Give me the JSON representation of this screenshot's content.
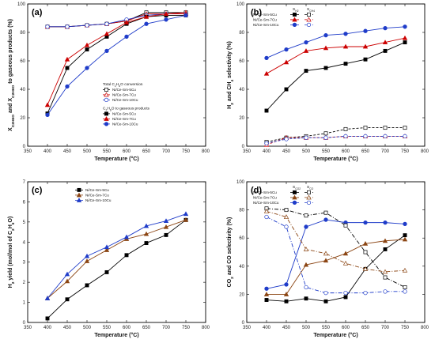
{
  "chart_data": [
    {
      "id": "a",
      "type": "line",
      "panel_label": "(a)",
      "xlabel": "Temperature (°C)",
      "ylabel_parts": [
        "X",
        "C2H6O",
        " and X",
        "C2H6O",
        " to gaseous products (%)"
      ],
      "xlim": [
        350,
        800
      ],
      "ylim": [
        0,
        100
      ],
      "xticks": [
        350,
        400,
        450,
        500,
        550,
        600,
        650,
        700,
        750,
        800
      ],
      "yticks": [
        0,
        20,
        40,
        60,
        80,
        100
      ],
      "x": [
        400,
        450,
        500,
        550,
        600,
        650,
        700,
        750
      ],
      "legend_groups": [
        {
          "title": "Total C2H6O conversion",
          "series_idx": [
            0,
            1,
            2
          ]
        },
        {
          "title": "C2H6O to gaseous products",
          "series_idx": [
            3,
            4,
            5
          ]
        }
      ],
      "series": [
        {
          "name": "Ni/Ce-Sm-5Cu",
          "color": "#000000",
          "marker": "square",
          "filled": false,
          "dash": "",
          "values": [
            84,
            84,
            85,
            86,
            88,
            94,
            94,
            94
          ]
        },
        {
          "name": "Ni/Ce-Sm-7Cu",
          "color": "#cc0000",
          "marker": "triangle",
          "filled": false,
          "dash": "",
          "values": [
            84,
            84,
            85,
            86,
            88,
            93,
            93,
            94
          ]
        },
        {
          "name": "Ni/Ce-Sm-10Cu",
          "color": "#1f3cc9",
          "marker": "circle",
          "filled": false,
          "dash": "",
          "values": [
            84,
            84,
            85,
            86,
            89,
            92,
            93,
            93
          ]
        },
        {
          "name": "Ni/Ce-Sm-5Cu",
          "color": "#000000",
          "marker": "square",
          "filled": true,
          "dash": "",
          "values": [
            23,
            55,
            68,
            77,
            86,
            91,
            92,
            92
          ]
        },
        {
          "name": "Ni/Ce-Sm-7Cu",
          "color": "#cc0000",
          "marker": "triangle",
          "filled": true,
          "dash": "",
          "values": [
            29,
            61,
            71,
            79,
            87,
            91,
            93,
            93
          ]
        },
        {
          "name": "Ni/Ce-Sm-10Cu",
          "color": "#1f3cc9",
          "marker": "circle",
          "filled": true,
          "dash": "",
          "values": [
            22,
            42,
            55,
            67,
            77,
            86,
            89,
            92
          ]
        }
      ]
    },
    {
      "id": "b",
      "type": "line",
      "panel_label": "(b)",
      "xlabel": "Temperature (°C)",
      "ylabel_parts": [
        "H",
        "2",
        " and CH",
        "4",
        " selectivity (%)"
      ],
      "xlim": [
        350,
        800
      ],
      "ylim": [
        0,
        100
      ],
      "xticks": [
        350,
        400,
        450,
        500,
        550,
        600,
        650,
        700,
        750,
        800
      ],
      "yticks": [
        0,
        20,
        40,
        60,
        80,
        100
      ],
      "x": [
        400,
        450,
        500,
        550,
        600,
        650,
        700,
        750
      ],
      "legend_cols": [
        "S",
        "H2",
        "S",
        "CH4"
      ],
      "legend_rows": [
        {
          "label": "Ni/Ce-Sm-5Cu",
          "h2": 0,
          "ch4": 3
        },
        {
          "label": "Ni/Ce-Sm-7Cu",
          "h2": 1,
          "ch4": 4
        },
        {
          "label": "Ni/Ce-Sm-10Cu",
          "h2": 2,
          "ch4": 5
        }
      ],
      "series": [
        {
          "name": "Ni/Ce-Sm-5Cu",
          "color": "#000000",
          "marker": "square",
          "filled": true,
          "dash": "",
          "values": [
            25,
            40,
            53,
            55,
            58,
            61,
            67,
            73
          ]
        },
        {
          "name": "Ni/Ce-Sm-7Cu",
          "color": "#cc0000",
          "marker": "triangle",
          "filled": true,
          "dash": "",
          "values": [
            51,
            59,
            67,
            69,
            70,
            70,
            73,
            76
          ]
        },
        {
          "name": "Ni/Ce-Sm-10Cu",
          "color": "#1f3cc9",
          "marker": "circle",
          "filled": true,
          "dash": "",
          "values": [
            62,
            68,
            73,
            78,
            79,
            81,
            83,
            84
          ]
        },
        {
          "name": "Ni/Ce-Sm-5Cu",
          "color": "#000000",
          "marker": "square",
          "filled": false,
          "dash": "3,2",
          "values": [
            3,
            6,
            7,
            9,
            12,
            13,
            13,
            13
          ]
        },
        {
          "name": "Ni/Ce-Sm-7Cu",
          "color": "#cc0000",
          "marker": "triangle",
          "filled": false,
          "dash": "3,2",
          "values": [
            1,
            6,
            6,
            6,
            7,
            7,
            7,
            7
          ]
        },
        {
          "name": "Ni/Ce-Sm-10Cu",
          "color": "#1f3cc9",
          "marker": "circle",
          "filled": false,
          "dash": "3,2",
          "values": [
            2,
            5,
            6,
            6,
            7,
            7,
            7,
            7
          ]
        }
      ]
    },
    {
      "id": "c",
      "type": "line",
      "panel_label": "(c)",
      "xlabel": "Temperature (°C)",
      "ylabel_parts": [
        "H",
        "2",
        " yield (mol/mol of C",
        "2",
        "H",
        "6",
        "O)"
      ],
      "xlim": [
        350,
        800
      ],
      "ylim": [
        0,
        7
      ],
      "xticks": [
        350,
        400,
        450,
        500,
        550,
        600,
        650,
        700,
        750,
        800
      ],
      "yticks": [
        0,
        1,
        2,
        3,
        4,
        5,
        6,
        7
      ],
      "x": [
        400,
        450,
        500,
        550,
        600,
        650,
        700,
        750
      ],
      "legend_rows": [
        {
          "label": "Ni/Ce-Sm-5Cu",
          "idx": 0
        },
        {
          "label": "Ni/Ce-Sm-7Cu",
          "idx": 1
        },
        {
          "label": "Ni/Ce-Sm-10Cu",
          "idx": 2
        }
      ],
      "series": [
        {
          "name": "Ni/Ce-Sm-5Cu",
          "color": "#000000",
          "marker": "square",
          "filled": true,
          "dash": "",
          "values": [
            0.2,
            1.15,
            1.85,
            2.5,
            3.35,
            3.95,
            4.35,
            5.1
          ]
        },
        {
          "name": "Ni/Ce-Sm-7Cu",
          "color": "#8b4513",
          "marker": "triangle",
          "filled": true,
          "dash": "",
          "values": [
            1.2,
            2.05,
            3.05,
            3.6,
            4.15,
            4.4,
            4.75,
            5.1
          ]
        },
        {
          "name": "Ni/Ce-Sm-10Cu",
          "color": "#1f3cc9",
          "marker": "triangle",
          "filled": true,
          "dash": "",
          "values": [
            1.2,
            2.4,
            3.3,
            3.75,
            4.25,
            4.8,
            5.05,
            5.4
          ]
        }
      ]
    },
    {
      "id": "d",
      "type": "line",
      "panel_label": "(d)",
      "xlabel": "Temperature (°C)",
      "ylabel_parts": [
        "CO",
        "2",
        " and CO selectivity (%)"
      ],
      "xlim": [
        350,
        800
      ],
      "ylim": [
        0,
        100
      ],
      "xticks": [
        350,
        400,
        450,
        500,
        550,
        600,
        650,
        700,
        750,
        800
      ],
      "yticks": [
        0,
        20,
        40,
        60,
        80,
        100
      ],
      "x": [
        400,
        450,
        500,
        550,
        600,
        650,
        700,
        750
      ],
      "legend_cols": [
        "S",
        "CO2",
        "S",
        "CO"
      ],
      "legend_rows": [
        {
          "label": "Ni/Ce-Sm-5Cu",
          "co2": 0,
          "co": 3
        },
        {
          "label": "Ni/Ce-Sm-7Cu",
          "co2": 1,
          "co": 4
        },
        {
          "label": "Ni/Ce-Sm-10Cu",
          "co2": 2,
          "co": 5
        }
      ],
      "series": [
        {
          "name": "Ni/Ce-Sm-5Cu",
          "color": "#000000",
          "marker": "square",
          "filled": true,
          "dash": "",
          "values": [
            16,
            15,
            17,
            15,
            18,
            38,
            52,
            62
          ]
        },
        {
          "name": "Ni/Ce-Sm-7Cu",
          "color": "#8b4513",
          "marker": "triangle",
          "filled": true,
          "dash": "",
          "values": [
            20,
            20,
            41,
            44,
            49,
            56,
            58,
            59
          ]
        },
        {
          "name": "Ni/Ce-Sm-10Cu",
          "color": "#1f3cc9",
          "marker": "circle",
          "filled": true,
          "dash": "",
          "values": [
            24,
            27,
            68,
            73,
            71,
            71,
            71,
            70
          ]
        },
        {
          "name": "Ni/Ce-Sm-5Cu",
          "color": "#000000",
          "marker": "square",
          "filled": false,
          "dash": "5,2,1,2",
          "values": [
            81,
            80,
            76,
            78,
            69,
            50,
            32,
            25
          ]
        },
        {
          "name": "Ni/Ce-Sm-7Cu",
          "color": "#8b4513",
          "marker": "triangle",
          "filled": false,
          "dash": "5,2,1,2",
          "values": [
            79,
            75,
            52,
            49,
            42,
            38,
            36,
            37
          ]
        },
        {
          "name": "Ni/Ce-Sm-10Cu",
          "color": "#1f3cc9",
          "marker": "circle",
          "filled": false,
          "dash": "5,2,1,2",
          "values": [
            75,
            68,
            25,
            21,
            21,
            21,
            22,
            22
          ]
        }
      ]
    }
  ]
}
